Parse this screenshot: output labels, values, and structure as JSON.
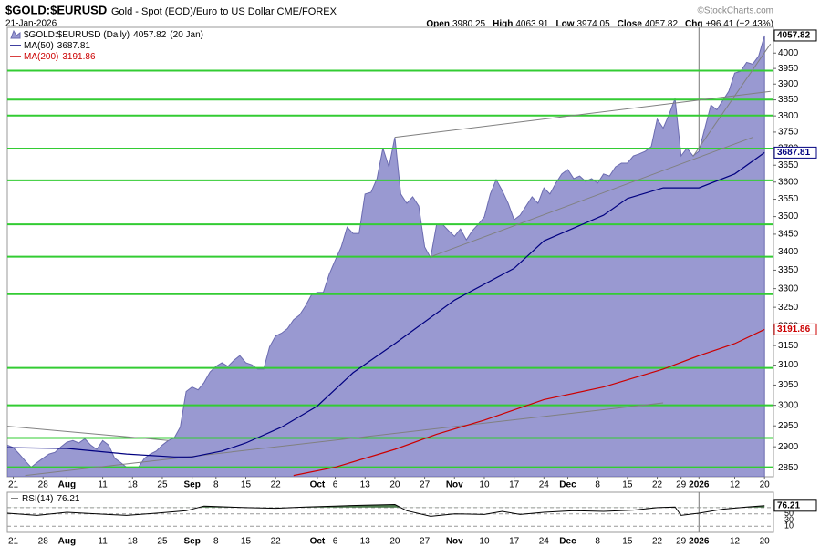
{
  "chart_data": {
    "type": "area",
    "title": "$GOLD:$EURUSD",
    "subtitle": "Gold - Spot (EOD)/Euro to US Dollar CME/FOREX",
    "date": "21-Jan-2026",
    "credit": "©StockCharts.com",
    "stats": [
      {
        "label": "Open",
        "value": "3980.25"
      },
      {
        "label": "High",
        "value": "4063.91"
      },
      {
        "label": "Low",
        "value": "3974.05"
      },
      {
        "label": "Close",
        "value": "4057.82"
      },
      {
        "label": "Chg",
        "value": "+96.41 (+2.43%)"
      }
    ],
    "log_scale": true,
    "ylim": [
      2830,
      4085
    ],
    "yticks": [
      2850,
      2900,
      2950,
      3000,
      3050,
      3100,
      3150,
      3200,
      3250,
      3300,
      3350,
      3400,
      3450,
      3500,
      3550,
      3600,
      3650,
      3700,
      3750,
      3800,
      3850,
      3900,
      3950,
      4000
    ],
    "xlim": [
      0,
      128.5
    ],
    "xticks": [
      {
        "value": 1,
        "label": "21"
      },
      {
        "value": 6,
        "label": "28"
      },
      {
        "value": 10,
        "label": "Aug"
      },
      {
        "value": 16,
        "label": "11"
      },
      {
        "value": 21,
        "label": "18"
      },
      {
        "value": 26,
        "label": "25"
      },
      {
        "value": 31,
        "label": "Sep"
      },
      {
        "value": 35,
        "label": "8"
      },
      {
        "value": 40,
        "label": "15"
      },
      {
        "value": 45,
        "label": "22"
      },
      {
        "value": 52,
        "label": "Oct"
      },
      {
        "value": 55,
        "label": "6"
      },
      {
        "value": 60,
        "label": "13"
      },
      {
        "value": 65,
        "label": "20"
      },
      {
        "value": 70,
        "label": "27"
      },
      {
        "value": 75,
        "label": "Nov"
      },
      {
        "value": 80,
        "label": "10"
      },
      {
        "value": 85,
        "label": "17"
      },
      {
        "value": 90,
        "label": "24"
      },
      {
        "value": 94,
        "label": "Dec"
      },
      {
        "value": 99,
        "label": "8"
      },
      {
        "value": 104,
        "label": "15"
      },
      {
        "value": 109,
        "label": "22"
      },
      {
        "value": 113,
        "label": "29"
      },
      {
        "value": 116,
        "label": "2026"
      },
      {
        "value": 122,
        "label": "12"
      },
      {
        "value": 127,
        "label": "20"
      }
    ],
    "series": [
      {
        "name": "$GOLD:$EURUSD (Daily)",
        "legend_suffix": "(20 Jan)",
        "color": "#9999d1",
        "line_color": "#6b6bb0",
        "values": [
          2904,
          2898,
          2883,
          2867,
          2852,
          2863,
          2873,
          2883,
          2887,
          2900,
          2911,
          2915,
          2909,
          2919,
          2904,
          2894,
          2915,
          2904,
          2873,
          2863,
          2852,
          2852,
          2852,
          2873,
          2883,
          2890,
          2904,
          2915,
          2921,
          2947,
          3034,
          3045,
          3038,
          3056,
          3083,
          3097,
          3106,
          3097,
          3112,
          3124,
          3106,
          3101,
          3090,
          3090,
          3147,
          3175,
          3182,
          3194,
          3217,
          3229,
          3253,
          3283,
          3290,
          3290,
          3339,
          3377,
          3414,
          3470,
          3452,
          3452,
          3565,
          3570,
          3610,
          3701,
          3645,
          3734,
          3565,
          3538,
          3557,
          3530,
          3414,
          3384,
          3478,
          3478,
          3460,
          3444,
          3465,
          3434,
          3460,
          3478,
          3499,
          3565,
          3607,
          3575,
          3538,
          3491,
          3504,
          3530,
          3557,
          3538,
          3583,
          3565,
          3597,
          3624,
          3637,
          3610,
          3618,
          3602,
          3610,
          3597,
          3624,
          3618,
          3645,
          3656,
          3656,
          3678,
          3684,
          3692,
          3706,
          3790,
          3762,
          3805,
          3854,
          3678,
          3701,
          3678,
          3692,
          3762,
          3834,
          3819,
          3848,
          3877,
          3935,
          3941,
          3970,
          3964,
          3990,
          4057.82
        ]
      },
      {
        "name": "MA(50)",
        "color": "#000080",
        "x": [
          0,
          10,
          20,
          28,
          31,
          36,
          40,
          46,
          52,
          58,
          65,
          75,
          85,
          90,
          100,
          104,
          110,
          116,
          122,
          127
        ],
        "values": [
          2898,
          2896,
          2883,
          2876,
          2876,
          2890,
          2909,
          2947,
          2998,
          3081,
          3155,
          3269,
          3355,
          3431,
          3504,
          3552,
          3583,
          3583,
          3624,
          3687.81
        ]
      },
      {
        "name": "MA(200)",
        "color": "#cc0000",
        "x": [
          48,
          55,
          65,
          72,
          80,
          90,
          100,
          110,
          116,
          122,
          127
        ],
        "values": [
          2833,
          2852,
          2894,
          2930,
          2964,
          3014,
          3045,
          3090,
          3124,
          3155,
          3191.86
        ]
      }
    ],
    "levels": {
      "color": "#33cc33",
      "values": [
        3943,
        3851,
        3801,
        3700,
        3605,
        3478,
        3387,
        3285,
        3093,
        3000,
        2921,
        2852
      ]
    },
    "trendlines": {
      "color": "#808080",
      "lines": [
        {
          "x": [
            0,
            27
          ],
          "values": [
            2949,
            2915
          ]
        },
        {
          "x": [
            3,
            110
          ],
          "values": [
            2833,
            3006
          ]
        },
        {
          "x": [
            65,
            128
          ],
          "values": [
            3734,
            3877
          ]
        },
        {
          "x": [
            71,
            125
          ],
          "values": [
            3387,
            3734
          ]
        },
        {
          "x": [
            115,
            128
          ],
          "values": [
            3676,
            4030
          ]
        }
      ]
    },
    "rsi": {
      "name": "RSI(14)",
      "color": "#000000",
      "fill": "#4d7a4d",
      "ylim": [
        -10,
        120
      ],
      "yticks": [
        10,
        30,
        50,
        70
      ],
      "x": [
        0,
        5,
        10,
        15,
        20,
        25,
        30,
        33,
        40,
        45,
        50,
        55,
        60,
        65,
        67,
        71,
        75,
        80,
        83,
        86,
        90,
        95,
        100,
        105,
        109,
        112,
        113,
        116,
        120,
        124,
        127
      ],
      "values": [
        52,
        45,
        55,
        50,
        45,
        52,
        60,
        75,
        70,
        68,
        72,
        75,
        78,
        80,
        60,
        42,
        50,
        48,
        58,
        48,
        55,
        60,
        58,
        62,
        70,
        72,
        45,
        52,
        65,
        72,
        76.21
      ]
    }
  }
}
